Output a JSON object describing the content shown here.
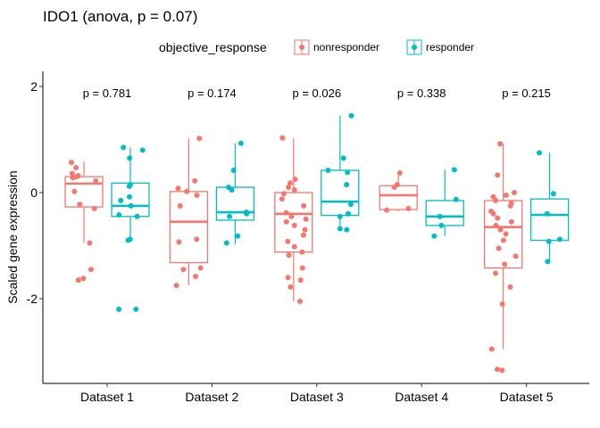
{
  "chart_data": {
    "type": "box",
    "title": "IDO1 (anova, p = 0.07)",
    "ylabel": "Scaled gene expression",
    "xlabel": "",
    "ylim": [
      -3.6,
      2.1
    ],
    "yticks": [
      -2,
      0,
      2
    ],
    "grid": false,
    "legend": {
      "title": "objective_response",
      "position": "top",
      "entries": [
        {
          "name": "nonresponder",
          "color": "#F8766D"
        },
        {
          "name": "responder",
          "color": "#00BFC4"
        }
      ]
    },
    "categories": [
      "Dataset 1",
      "Dataset 2",
      "Dataset 3",
      "Dataset 4",
      "Dataset 5"
    ],
    "pvalues": [
      "p = 0.781",
      "p = 0.174",
      "p = 0.026",
      "p = 0.338",
      "p = 0.215"
    ],
    "series": [
      {
        "name": "nonresponder",
        "color": "#F8766D",
        "boxes": [
          {
            "min": -0.95,
            "q1": -0.27,
            "median": 0.17,
            "q3": 0.3,
            "max": 0.58,
            "points": [
              0.57,
              0.47,
              0.36,
              0.32,
              0.3,
              0.28,
              0.22,
              0.02,
              -0.22,
              -0.3,
              -0.95,
              -1.45,
              -1.62,
              -1.65
            ]
          },
          {
            "min": -1.75,
            "q1": -1.32,
            "median": -0.55,
            "q3": 0.02,
            "max": 1.02,
            "points": [
              1.02,
              0.22,
              0.08,
              0.02,
              -0.05,
              -0.25,
              -0.88,
              -0.93,
              -1.42,
              -1.45,
              -1.58,
              -1.75
            ]
          },
          {
            "min": -2.05,
            "q1": -1.12,
            "median": -0.4,
            "q3": 0.0,
            "max": 1.03,
            "points": [
              1.03,
              0.25,
              0.18,
              0.1,
              0.05,
              -0.02,
              -0.12,
              -0.25,
              -0.38,
              -0.45,
              -0.5,
              -0.55,
              -0.62,
              -0.7,
              -0.8,
              -0.92,
              -1.02,
              -1.12,
              -1.18,
              -1.42,
              -1.6,
              -1.65,
              -1.78,
              -2.05
            ]
          },
          {
            "min": -0.35,
            "q1": -0.32,
            "median": -0.05,
            "q3": 0.13,
            "max": 0.37,
            "points": [
              0.37,
              0.15,
              0.1,
              -0.3,
              -0.33
            ]
          },
          {
            "min": -2.95,
            "q1": -1.42,
            "median": -0.65,
            "q3": -0.15,
            "max": 0.92,
            "points": [
              0.92,
              0.33,
              0.0,
              -0.05,
              -0.08,
              -0.15,
              -0.2,
              -0.25,
              -0.35,
              -0.4,
              -0.48,
              -0.55,
              -0.62,
              -0.7,
              -0.78,
              -0.9,
              -1.05,
              -1.2,
              -1.35,
              -1.52,
              -1.78,
              -2.1,
              -2.95,
              -3.33,
              -3.35
            ]
          }
        ]
      },
      {
        "name": "responder",
        "color": "#00BFC4",
        "boxes": [
          {
            "min": -0.92,
            "q1": -0.45,
            "median": -0.25,
            "q3": 0.18,
            "max": 0.85,
            "points": [
              0.85,
              0.8,
              0.65,
              0.15,
              0.12,
              -0.08,
              -0.15,
              -0.25,
              -0.42,
              -0.45,
              -0.88,
              -0.9,
              -2.2,
              -2.2
            ]
          },
          {
            "min": -0.98,
            "q1": -0.52,
            "median": -0.37,
            "q3": 0.1,
            "max": 0.93,
            "points": [
              0.93,
              0.42,
              0.1,
              0.05,
              -0.37,
              -0.4,
              -0.45,
              -0.82,
              -0.95
            ]
          },
          {
            "min": -0.72,
            "q1": -0.43,
            "median": -0.17,
            "q3": 0.42,
            "max": 1.45,
            "points": [
              1.45,
              0.65,
              0.42,
              0.38,
              0.15,
              -0.22,
              -0.4,
              -0.45,
              -0.7,
              -0.68
            ]
          },
          {
            "min": -0.82,
            "q1": -0.62,
            "median": -0.45,
            "q3": -0.15,
            "max": 0.43,
            "points": [
              0.43,
              -0.13,
              -0.45,
              -0.62,
              -0.82
            ]
          },
          {
            "min": -1.32,
            "q1": -0.9,
            "median": -0.42,
            "q3": -0.12,
            "max": 0.75,
            "points": [
              0.75,
              -0.02,
              -0.4,
              -0.88,
              -0.92,
              -1.3
            ]
          }
        ]
      }
    ]
  }
}
